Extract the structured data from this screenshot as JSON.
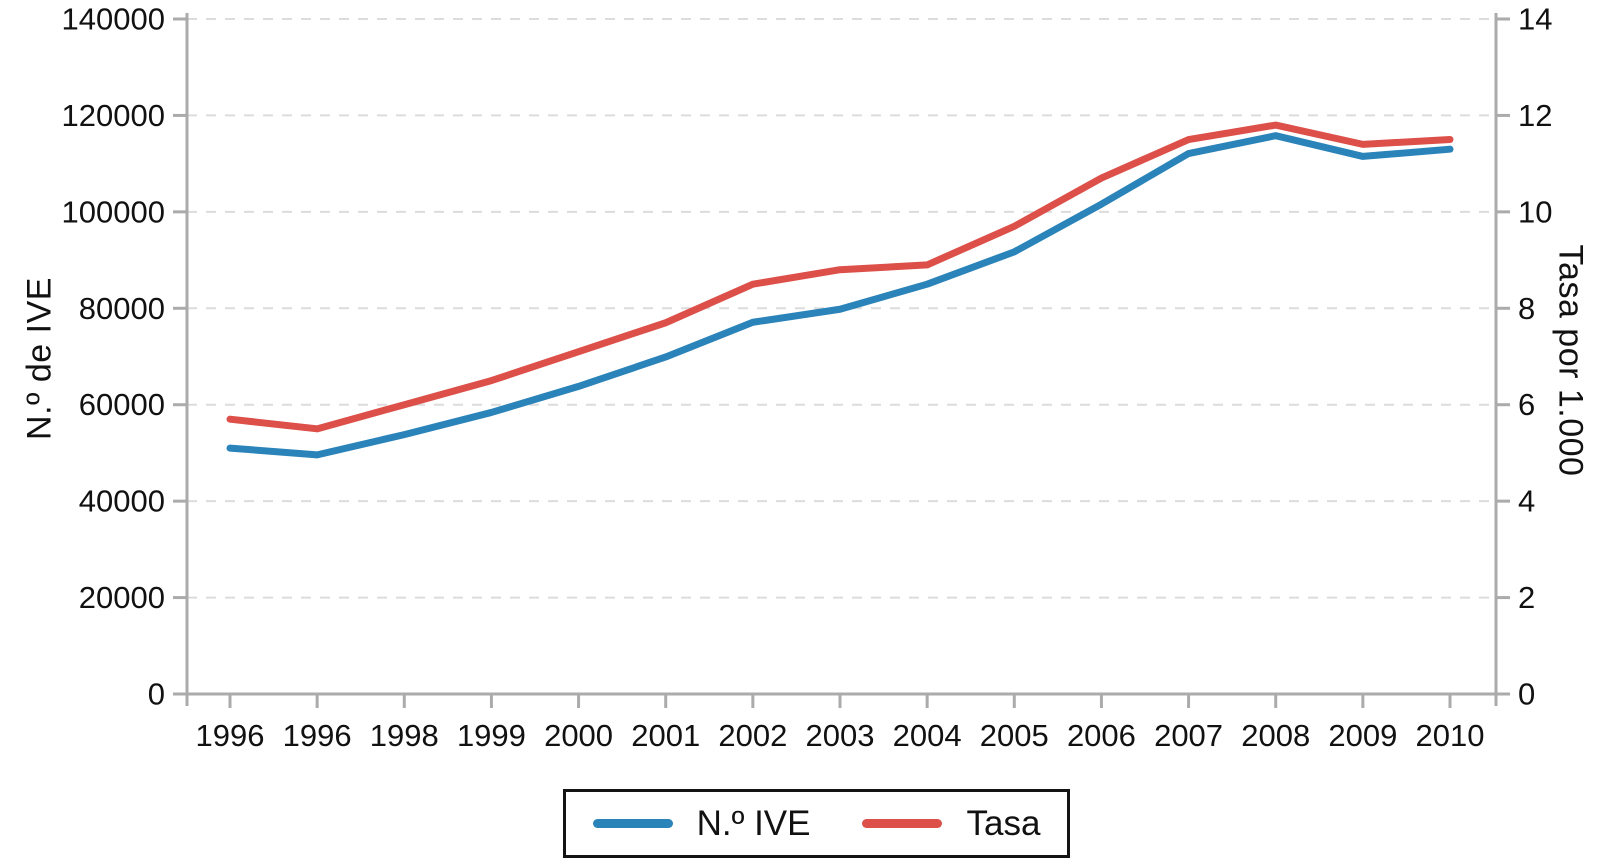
{
  "chart_data": {
    "type": "line",
    "title": "",
    "x_categories": [
      "1996",
      "1996",
      "1998",
      "1999",
      "2000",
      "2001",
      "2002",
      "2003",
      "2004",
      "2005",
      "2006",
      "2007",
      "2008",
      "2009",
      "2010"
    ],
    "series": [
      {
        "name": "N.º IVE",
        "axis": "left",
        "color": "#2a83b9",
        "values": [
          51000,
          49600,
          53800,
          58400,
          63800,
          69900,
          77100,
          79800,
          85000,
          91700,
          101600,
          112100,
          115800,
          111500,
          113000
        ]
      },
      {
        "name": "Tasa",
        "axis": "right",
        "color": "#dd4f49",
        "values": [
          5.7,
          5.5,
          6.0,
          6.5,
          7.1,
          7.7,
          8.5,
          8.8,
          8.9,
          9.7,
          10.7,
          11.5,
          11.8,
          11.4,
          11.5
        ]
      }
    ],
    "left_axis": {
      "label": "N.º de IVE",
      "min": 0,
      "max": 140000,
      "tick_labels": [
        "0",
        "20000",
        "40000",
        "60000",
        "80000",
        "100000",
        "120000",
        "140000"
      ]
    },
    "right_axis": {
      "label": "Tasa por 1.000",
      "min": 0,
      "max": 14,
      "tick_labels": [
        "0",
        "2",
        "4",
        "6",
        "8",
        "10",
        "12",
        "14"
      ]
    },
    "grid": {
      "horizontal": "dashed",
      "vertical": "off"
    },
    "legend_position": "bottom",
    "legend": {
      "items": [
        {
          "label": "N.º IVE",
          "color": "#2a83b9"
        },
        {
          "label": "Tasa",
          "color": "#dd4f49"
        }
      ]
    }
  },
  "colors": {
    "axis_line": "#ababab",
    "grid_line": "#dcdcdc",
    "text": "#111111",
    "background": "#ffffff"
  }
}
